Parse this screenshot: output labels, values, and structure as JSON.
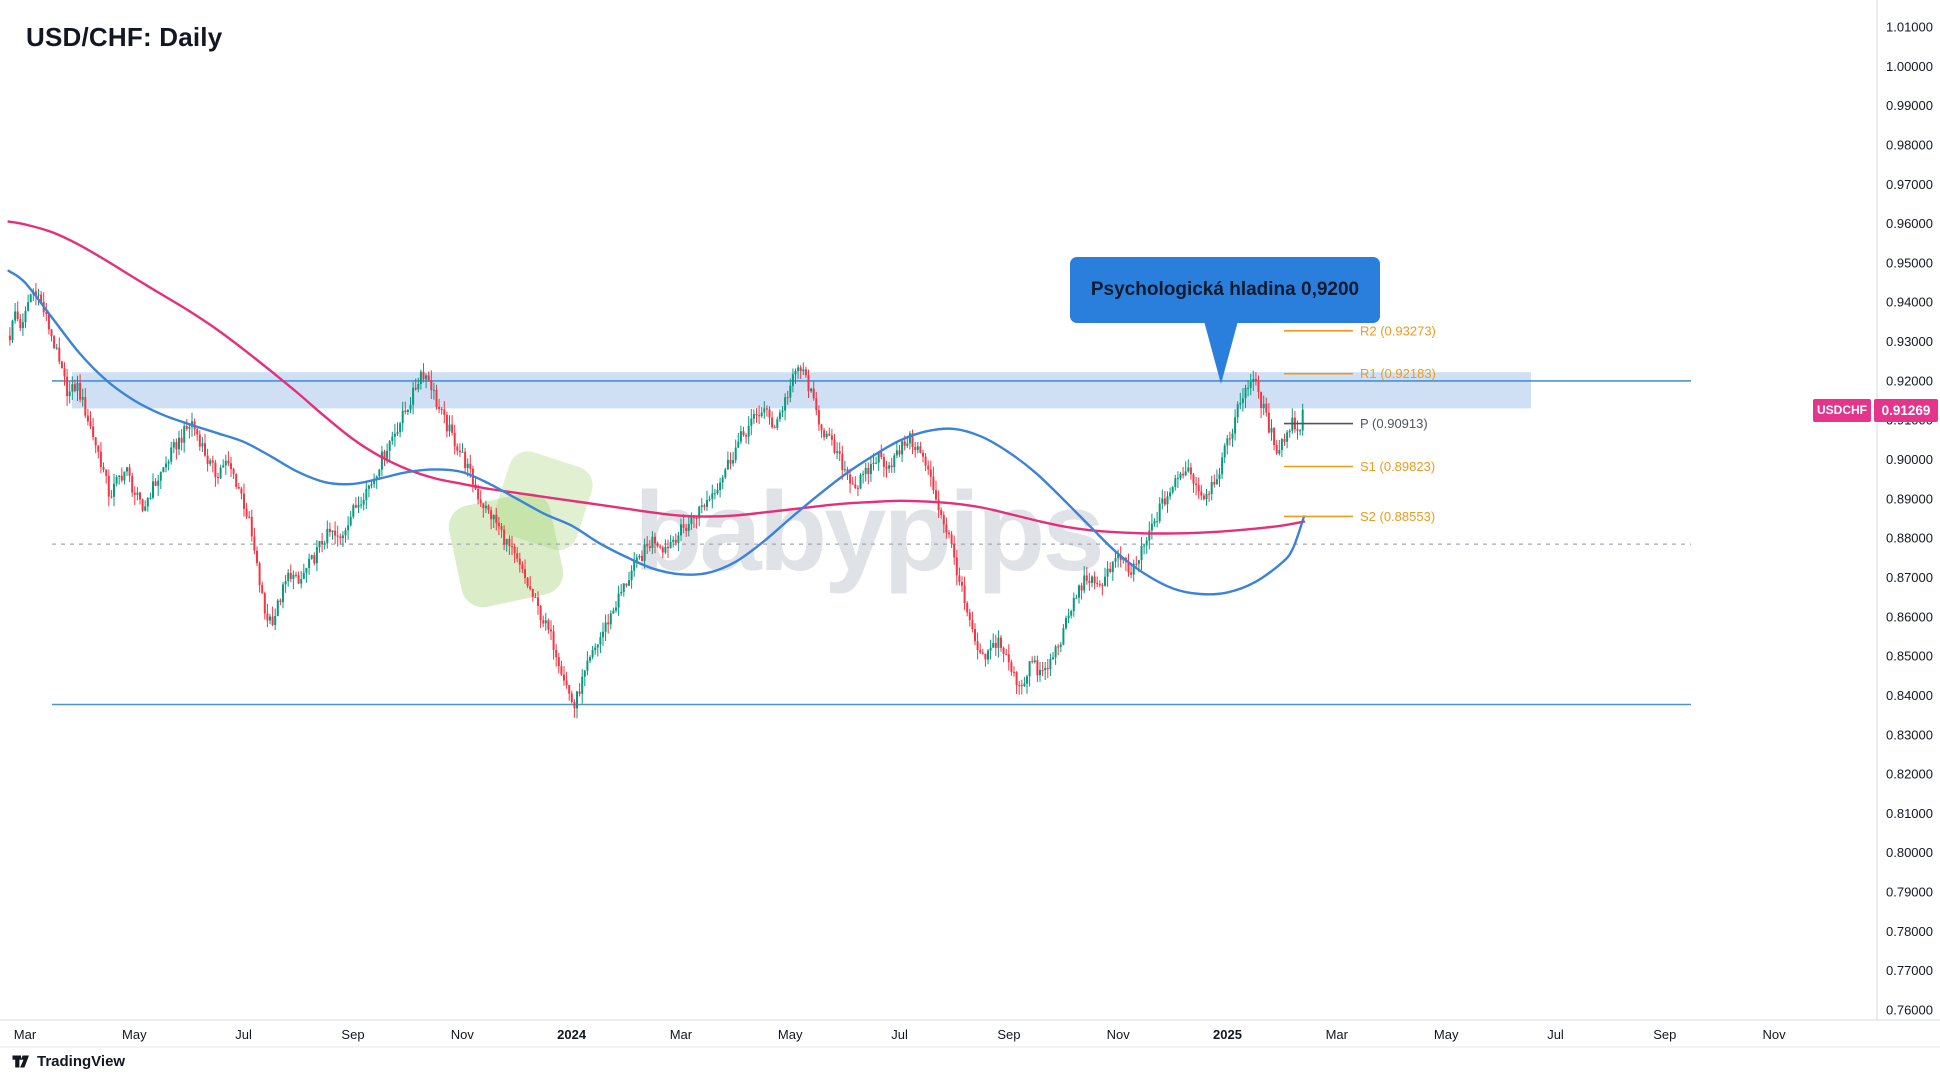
{
  "window": {
    "title": "USD/CHF: Daily"
  },
  "attribution": {
    "label": "TradingView"
  },
  "watermark": {
    "text": "babypips",
    "leaf_color": "#bfe3ac"
  },
  "quote": {
    "symbol": "USDCHF",
    "last": "0.91269",
    "tag_color": "#e5348c"
  },
  "chart_data": {
    "type": "candlestick",
    "symbol": "USD/CHF",
    "timeframe": "Daily",
    "title": "USD/CHF: Daily",
    "grid": "off",
    "bars_per_month": 21,
    "candle_up_color": "#089981",
    "candle_down_color": "#f23645",
    "y_axis": {
      "min": 0.76,
      "max": 1.01,
      "step": 0.01,
      "tick_decimals": 5,
      "side": "right"
    },
    "x_ticks": [
      {
        "label": "Mar",
        "m": 0
      },
      {
        "label": "May",
        "m": 2
      },
      {
        "label": "Jul",
        "m": 4
      },
      {
        "label": "Sep",
        "m": 6
      },
      {
        "label": "Nov",
        "m": 8
      },
      {
        "label": "2024",
        "m": 10
      },
      {
        "label": "Mar",
        "m": 12
      },
      {
        "label": "May",
        "m": 14
      },
      {
        "label": "Jul",
        "m": 16
      },
      {
        "label": "Sep",
        "m": 18
      },
      {
        "label": "Nov",
        "m": 20
      },
      {
        "label": "2025",
        "m": 22
      },
      {
        "label": "Mar",
        "m": 24
      },
      {
        "label": "May",
        "m": 26
      },
      {
        "label": "Jul",
        "m": 28
      },
      {
        "label": "Sep",
        "m": 30
      },
      {
        "label": "Nov",
        "m": 32
      }
    ],
    "annotation": {
      "text": "Psychologická hladina 0,9200",
      "bg": "#2a7fdd",
      "text_color": "#0d1b2e",
      "points_to_price": 0.92
    },
    "pivots": [
      {
        "name": "R2",
        "value": 0.93273,
        "label": "R2 (0.93273)",
        "color": "#ef9a1d"
      },
      {
        "name": "R1",
        "value": 0.92183,
        "label": "R1 (0.92183)",
        "color": "#ef9a1d"
      },
      {
        "name": "P",
        "value": 0.90913,
        "label": "P (0.90913)",
        "color": "#50545c"
      },
      {
        "name": "S1",
        "value": 0.89823,
        "label": "S1 (0.89823)",
        "color": "#ef9a1d"
      },
      {
        "name": "S2",
        "value": 0.88553,
        "label": "S2 (0.88553)",
        "color": "#ef9a1d"
      }
    ],
    "levels": {
      "resistance_zone": {
        "top": 0.9222,
        "bottom": 0.913,
        "fill": "rgba(63,133,210,0.25)"
      },
      "hline_psych": {
        "price": 0.92,
        "color": "#4b94d8"
      },
      "support_line": {
        "price": 0.8377,
        "color": "#4b94d8"
      },
      "dashed_line": {
        "price": 0.8785,
        "color": "#a4a8b1"
      }
    },
    "price_path": [
      [
        -0.3,
        0.93
      ],
      [
        -0.18,
        0.9375
      ],
      [
        -0.05,
        0.933
      ],
      [
        0.08,
        0.9415
      ],
      [
        0.2,
        0.9435
      ],
      [
        0.35,
        0.9375
      ],
      [
        0.5,
        0.931
      ],
      [
        0.65,
        0.923
      ],
      [
        0.8,
        0.9165
      ],
      [
        0.95,
        0.919
      ],
      [
        1.1,
        0.9125
      ],
      [
        1.25,
        0.906
      ],
      [
        1.4,
        0.899
      ],
      [
        1.55,
        0.8905
      ],
      [
        1.7,
        0.895
      ],
      [
        1.85,
        0.8975
      ],
      [
        2.0,
        0.8915
      ],
      [
        2.15,
        0.887
      ],
      [
        2.3,
        0.892
      ],
      [
        2.45,
        0.8955
      ],
      [
        2.6,
        0.8995
      ],
      [
        2.75,
        0.9035
      ],
      [
        2.9,
        0.9065
      ],
      [
        3.05,
        0.9095
      ],
      [
        3.2,
        0.905
      ],
      [
        3.35,
        0.8995
      ],
      [
        3.5,
        0.896
      ],
      [
        3.65,
        0.8995
      ],
      [
        3.8,
        0.8965
      ],
      [
        3.95,
        0.8915
      ],
      [
        4.1,
        0.884
      ],
      [
        4.25,
        0.872
      ],
      [
        4.4,
        0.86
      ],
      [
        4.55,
        0.8595
      ],
      [
        4.7,
        0.866
      ],
      [
        4.85,
        0.8715
      ],
      [
        5.0,
        0.868
      ],
      [
        5.15,
        0.872
      ],
      [
        5.3,
        0.8755
      ],
      [
        5.45,
        0.8795
      ],
      [
        5.6,
        0.8815
      ],
      [
        5.75,
        0.879
      ],
      [
        5.9,
        0.8845
      ],
      [
        6.05,
        0.888
      ],
      [
        6.2,
        0.8915
      ],
      [
        6.35,
        0.8945
      ],
      [
        6.5,
        0.8995
      ],
      [
        6.65,
        0.904
      ],
      [
        6.8,
        0.908
      ],
      [
        6.95,
        0.912
      ],
      [
        7.1,
        0.9165
      ],
      [
        7.25,
        0.9225
      ],
      [
        7.4,
        0.9205
      ],
      [
        7.55,
        0.9135
      ],
      [
        7.7,
        0.909
      ],
      [
        7.85,
        0.905
      ],
      [
        8.0,
        0.901
      ],
      [
        8.15,
        0.896
      ],
      [
        8.3,
        0.8905
      ],
      [
        8.45,
        0.887
      ],
      [
        8.6,
        0.8845
      ],
      [
        8.75,
        0.8805
      ],
      [
        8.9,
        0.8765
      ],
      [
        9.05,
        0.8725
      ],
      [
        9.2,
        0.868
      ],
      [
        9.35,
        0.863
      ],
      [
        9.5,
        0.8585
      ],
      [
        9.65,
        0.854
      ],
      [
        9.8,
        0.8475
      ],
      [
        9.95,
        0.8405
      ],
      [
        10.05,
        0.837
      ],
      [
        10.15,
        0.842
      ],
      [
        10.3,
        0.8475
      ],
      [
        10.45,
        0.8525
      ],
      [
        10.6,
        0.857
      ],
      [
        10.75,
        0.8615
      ],
      [
        10.9,
        0.866
      ],
      [
        11.1,
        0.8715
      ],
      [
        11.3,
        0.876
      ],
      [
        11.5,
        0.88
      ],
      [
        11.7,
        0.8775
      ],
      [
        11.9,
        0.8805
      ],
      [
        12.1,
        0.883
      ],
      [
        12.3,
        0.8865
      ],
      [
        12.5,
        0.89
      ],
      [
        12.7,
        0.8945
      ],
      [
        12.9,
        0.9
      ],
      [
        13.1,
        0.9055
      ],
      [
        13.3,
        0.9095
      ],
      [
        13.5,
        0.913
      ],
      [
        13.7,
        0.9085
      ],
      [
        13.85,
        0.913
      ],
      [
        14.0,
        0.9185
      ],
      [
        14.15,
        0.9235
      ],
      [
        14.3,
        0.9205
      ],
      [
        14.45,
        0.913
      ],
      [
        14.6,
        0.9075
      ],
      [
        14.8,
        0.9025
      ],
      [
        15.0,
        0.8975
      ],
      [
        15.2,
        0.893
      ],
      [
        15.4,
        0.8965
      ],
      [
        15.6,
        0.901
      ],
      [
        15.8,
        0.8985
      ],
      [
        16.0,
        0.902
      ],
      [
        16.15,
        0.9055
      ],
      [
        16.3,
        0.9035
      ],
      [
        16.45,
        0.8995
      ],
      [
        16.6,
        0.8935
      ],
      [
        16.75,
        0.8865
      ],
      [
        16.9,
        0.8805
      ],
      [
        17.05,
        0.872
      ],
      [
        17.2,
        0.8625
      ],
      [
        17.35,
        0.8545
      ],
      [
        17.5,
        0.8485
      ],
      [
        17.65,
        0.851
      ],
      [
        17.8,
        0.8545
      ],
      [
        17.95,
        0.8495
      ],
      [
        18.1,
        0.8445
      ],
      [
        18.25,
        0.8425
      ],
      [
        18.4,
        0.849
      ],
      [
        18.55,
        0.8455
      ],
      [
        18.7,
        0.8465
      ],
      [
        18.85,
        0.8515
      ],
      [
        19.0,
        0.856
      ],
      [
        19.15,
        0.8625
      ],
      [
        19.3,
        0.8675
      ],
      [
        19.45,
        0.8705
      ],
      [
        19.6,
        0.8665
      ],
      [
        19.75,
        0.8705
      ],
      [
        19.9,
        0.8735
      ],
      [
        20.05,
        0.875
      ],
      [
        20.2,
        0.8705
      ],
      [
        20.35,
        0.874
      ],
      [
        20.5,
        0.8785
      ],
      [
        20.65,
        0.884
      ],
      [
        20.8,
        0.8885
      ],
      [
        20.95,
        0.892
      ],
      [
        21.1,
        0.895
      ],
      [
        21.25,
        0.8985
      ],
      [
        21.4,
        0.8945
      ],
      [
        21.55,
        0.8905
      ],
      [
        21.7,
        0.8935
      ],
      [
        21.85,
        0.8975
      ],
      [
        22.0,
        0.904
      ],
      [
        22.15,
        0.911
      ],
      [
        22.3,
        0.9175
      ],
      [
        22.45,
        0.921
      ],
      [
        22.6,
        0.9155
      ],
      [
        22.75,
        0.9085
      ],
      [
        22.9,
        0.903
      ],
      [
        23.05,
        0.9055
      ],
      [
        23.2,
        0.91
      ],
      [
        23.3,
        0.907
      ],
      [
        23.4,
        0.91269
      ]
    ],
    "ma_fast": {
      "color": "#3b82d9",
      "points": [
        [
          -0.3,
          0.948
        ],
        [
          0.0,
          0.945
        ],
        [
          0.5,
          0.936
        ],
        [
          1.0,
          0.927
        ],
        [
          1.5,
          0.92
        ],
        [
          2.0,
          0.915
        ],
        [
          2.5,
          0.9115
        ],
        [
          3.0,
          0.909
        ],
        [
          3.5,
          0.9068
        ],
        [
          4.0,
          0.9045
        ],
        [
          4.5,
          0.9008
        ],
        [
          5.0,
          0.8968
        ],
        [
          5.5,
          0.8942
        ],
        [
          6.0,
          0.8938
        ],
        [
          6.5,
          0.8952
        ],
        [
          7.0,
          0.8968
        ],
        [
          7.5,
          0.8975
        ],
        [
          8.0,
          0.8968
        ],
        [
          8.5,
          0.8938
        ],
        [
          9.0,
          0.89
        ],
        [
          9.5,
          0.8862
        ],
        [
          10.0,
          0.8832
        ],
        [
          10.5,
          0.8788
        ],
        [
          11.0,
          0.8752
        ],
        [
          11.5,
          0.8722
        ],
        [
          12.0,
          0.8708
        ],
        [
          12.5,
          0.8712
        ],
        [
          13.0,
          0.874
        ],
        [
          13.5,
          0.879
        ],
        [
          14.0,
          0.885
        ],
        [
          14.5,
          0.8908
        ],
        [
          15.0,
          0.8962
        ],
        [
          15.5,
          0.9008
        ],
        [
          16.0,
          0.9048
        ],
        [
          16.5,
          0.9072
        ],
        [
          17.0,
          0.9078
        ],
        [
          17.5,
          0.9058
        ],
        [
          18.0,
          0.9018
        ],
        [
          18.5,
          0.8965
        ],
        [
          19.0,
          0.8898
        ],
        [
          19.5,
          0.8828
        ],
        [
          20.0,
          0.876
        ],
        [
          20.5,
          0.8708
        ],
        [
          21.0,
          0.8672
        ],
        [
          21.5,
          0.8658
        ],
        [
          22.0,
          0.8662
        ],
        [
          22.5,
          0.8688
        ],
        [
          23.0,
          0.8738
        ],
        [
          23.2,
          0.8775
        ],
        [
          23.4,
          0.8855
        ]
      ]
    },
    "ma_slow": {
      "color": "#e62e79",
      "points": [
        [
          -0.3,
          0.9605
        ],
        [
          0.0,
          0.9598
        ],
        [
          0.5,
          0.9578
        ],
        [
          1.0,
          0.9545
        ],
        [
          1.5,
          0.9505
        ],
        [
          2.0,
          0.9462
        ],
        [
          2.5,
          0.942
        ],
        [
          3.0,
          0.9378
        ],
        [
          3.5,
          0.9332
        ],
        [
          4.0,
          0.928
        ],
        [
          4.5,
          0.9225
        ],
        [
          5.0,
          0.9168
        ],
        [
          5.5,
          0.9108
        ],
        [
          6.0,
          0.9052
        ],
        [
          6.5,
          0.9008
        ],
        [
          7.0,
          0.8975
        ],
        [
          7.5,
          0.8952
        ],
        [
          8.0,
          0.8938
        ],
        [
          8.5,
          0.8925
        ],
        [
          9.0,
          0.8915
        ],
        [
          9.5,
          0.8905
        ],
        [
          10.0,
          0.8895
        ],
        [
          10.5,
          0.8885
        ],
        [
          11.0,
          0.8875
        ],
        [
          11.5,
          0.8865
        ],
        [
          12.0,
          0.8857
        ],
        [
          12.5,
          0.8855
        ],
        [
          13.0,
          0.8858
        ],
        [
          13.5,
          0.8865
        ],
        [
          14.0,
          0.8873
        ],
        [
          14.5,
          0.8881
        ],
        [
          15.0,
          0.8888
        ],
        [
          15.5,
          0.8892
        ],
        [
          16.0,
          0.8895
        ],
        [
          16.5,
          0.8893
        ],
        [
          17.0,
          0.8888
        ],
        [
          17.5,
          0.8878
        ],
        [
          18.0,
          0.8862
        ],
        [
          18.5,
          0.8845
        ],
        [
          19.0,
          0.883
        ],
        [
          19.5,
          0.882
        ],
        [
          20.0,
          0.8815
        ],
        [
          20.5,
          0.8812
        ],
        [
          21.0,
          0.8812
        ],
        [
          21.5,
          0.8814
        ],
        [
          22.0,
          0.8818
        ],
        [
          22.5,
          0.8824
        ],
        [
          23.0,
          0.8832
        ],
        [
          23.4,
          0.8842
        ]
      ]
    }
  }
}
